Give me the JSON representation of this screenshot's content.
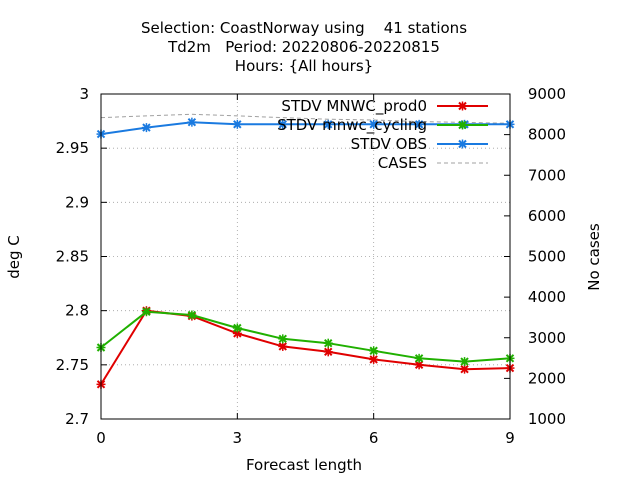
{
  "chart_data": {
    "type": "line",
    "title_lines": [
      "Selection: CoastNorway using    41 stations",
      "Td2m   Period: 20220806-20220815",
      "Hours: {All hours}"
    ],
    "xlabel": "Forecast length",
    "ylabel": "deg C",
    "y2label": "No cases",
    "xlim": [
      0,
      9
    ],
    "ylim": [
      2.7,
      3.0
    ],
    "y2lim": [
      1000,
      9000
    ],
    "x_ticks": [
      0,
      3,
      6,
      9
    ],
    "x_tick_labels": [
      "0",
      "3",
      "6",
      "9"
    ],
    "y_ticks": [
      2.7,
      2.75,
      2.8,
      2.85,
      2.9,
      2.95,
      3.0
    ],
    "y_tick_labels": [
      "2.7",
      "2.75",
      "2.8",
      "2.85",
      "2.9",
      "2.95",
      "3"
    ],
    "y2_ticks": [
      1000,
      2000,
      3000,
      4000,
      5000,
      6000,
      7000,
      8000,
      9000
    ],
    "y2_tick_labels": [
      "1000",
      "2000",
      "3000",
      "4000",
      "5000",
      "6000",
      "7000",
      "8000",
      "9000"
    ],
    "grid": "horizontal dotted at left-axis ticks, vertical dotted at x ticks",
    "legend_position": "top-right",
    "x": [
      0,
      1,
      2,
      3,
      4,
      5,
      6,
      7,
      8,
      9
    ],
    "series": [
      {
        "name": "STDV MNWC_prod0",
        "color": "#e00000",
        "axis": "y",
        "marker": "cross",
        "values": [
          2.732,
          2.8,
          2.795,
          2.779,
          2.767,
          2.762,
          2.755,
          2.75,
          2.746,
          2.747
        ]
      },
      {
        "name": "STDV mnwc_cycling",
        "color": "#20b000",
        "axis": "y",
        "marker": "cross",
        "values": [
          2.766,
          2.799,
          2.796,
          2.784,
          2.774,
          2.77,
          2.763,
          2.756,
          2.753,
          2.756
        ]
      },
      {
        "name": "STDV OBS",
        "color": "#1a7ae0",
        "axis": "y",
        "marker": "cross",
        "values": [
          2.963,
          2.969,
          2.974,
          2.972,
          2.972,
          2.972,
          2.972,
          2.972,
          2.972,
          2.972
        ]
      },
      {
        "name": "CASES",
        "color": "#a0a0a0",
        "axis": "y2",
        "dash": true,
        "values": [
          8420,
          8460,
          8500,
          8460,
          8420,
          8380,
          8360,
          8320,
          8300,
          8280
        ]
      }
    ]
  }
}
